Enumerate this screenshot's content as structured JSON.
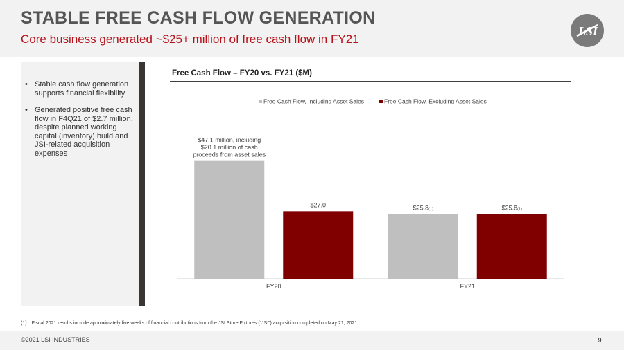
{
  "header": {
    "title": "STABLE FREE CASH FLOW GENERATION",
    "subtitle": "Core business generated ~$25+ million of free cash flow in FY21"
  },
  "logo": {
    "icon": "lsi-logo-icon"
  },
  "bullets": [
    "Stable cash flow generation supports financial flexibility",
    "Generated positive free cash flow in F4Q21 of $2.7 million, despite planned working capital (inventory) build and JSI-related acquisition expenses"
  ],
  "chart_title": "Free Cash Flow – FY20 vs. FY21 ($M)",
  "chart_data": {
    "type": "bar",
    "title": "Free Cash Flow – FY20 vs. FY21 ($M)",
    "categories": [
      "FY20",
      "FY21"
    ],
    "series": [
      {
        "name": "Free Cash Flow, Including Asset Sales",
        "color": "#bfbfbf",
        "values": [
          47.1,
          25.8
        ]
      },
      {
        "name": "Free Cash Flow, Excluding Asset Sales",
        "color": "#800000",
        "values": [
          27.0,
          25.8
        ]
      }
    ],
    "data_labels": [
      [
        "$47.1 million, including",
        "$20.1 million of cash",
        "proceeds from asset sales"
      ],
      [
        "$27.0"
      ],
      [
        "$25.8"
      ],
      [
        "$25.8"
      ]
    ],
    "label_footnote": "(1)",
    "ylim": [
      0,
      60
    ],
    "grid": false,
    "legend_position": "top"
  },
  "footnote": {
    "number": "(1)",
    "text": "Fiscal 2021 results include approximately five weeks of financial contributions from the JSI Store Fixtures (“JSI”) acquisition completed on May 21, 2021"
  },
  "footer": {
    "copyright": "©2021 LSI INDUSTRIES",
    "page": "9"
  }
}
